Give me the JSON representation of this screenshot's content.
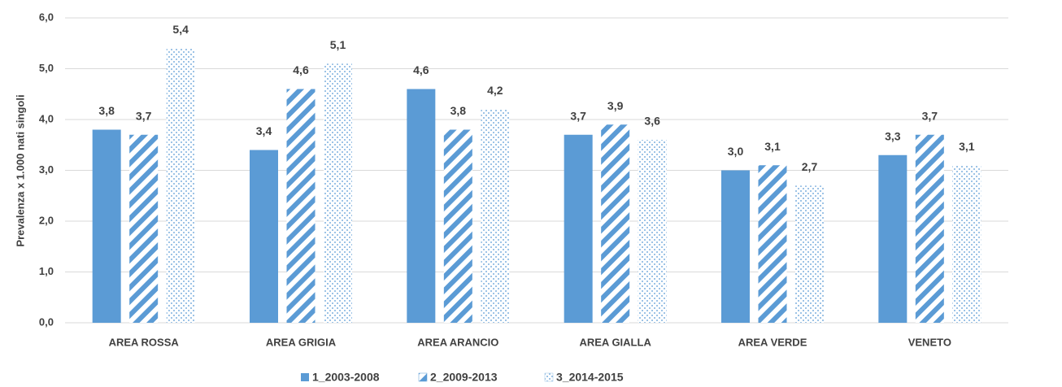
{
  "chart_data": {
    "type": "bar",
    "y_label": "Prevalenza x 1.000 nati singoli",
    "categories": [
      "AREA ROSSA",
      "AREA GRIGIA",
      "AREA ARANCIO",
      "AREA GIALLA",
      "AREA VERDE",
      "VENETO"
    ],
    "series": [
      {
        "name": "1_2003-2008",
        "color": "#5b9bd5",
        "pattern": "solid",
        "values": [
          3.8,
          3.4,
          4.6,
          3.7,
          3.0,
          3.3
        ],
        "value_labels": [
          "3,8",
          "3,4",
          "4,6",
          "3,7",
          "3,0",
          "3,3"
        ]
      },
      {
        "name": "2_2009-2013",
        "color": "#5b9bd5",
        "pattern": "diagonal",
        "values": [
          3.7,
          4.6,
          3.8,
          3.9,
          3.1,
          3.7
        ],
        "value_labels": [
          "3,7",
          "4,6",
          "3,8",
          "3,9",
          "3,1",
          "3,7"
        ]
      },
      {
        "name": "3_2014-2015",
        "color": "#9dc3e6",
        "pattern": "dots",
        "values": [
          5.4,
          5.1,
          4.2,
          3.6,
          2.7,
          3.1
        ],
        "value_labels": [
          "5,4",
          "5,1",
          "4,2",
          "3,6",
          "2,7",
          "3,1"
        ]
      }
    ],
    "ylim": [
      0,
      6
    ],
    "yticks": [
      {
        "value": 0,
        "label": "0,0"
      },
      {
        "value": 1,
        "label": "1,0"
      },
      {
        "value": 2,
        "label": "2,0"
      },
      {
        "value": 3,
        "label": "3,0"
      },
      {
        "value": 4,
        "label": "4,0"
      },
      {
        "value": 5,
        "label": "5,0"
      },
      {
        "value": 6,
        "label": "6,0"
      }
    ],
    "grid": true,
    "legend": "bottom"
  }
}
